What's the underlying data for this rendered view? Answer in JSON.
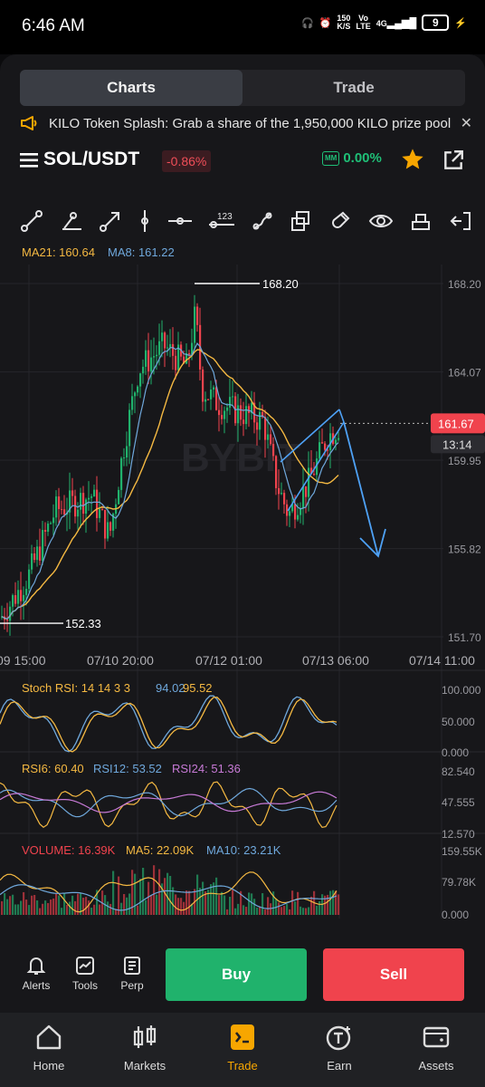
{
  "status": {
    "time": "6:46 AM",
    "speed_top": "150",
    "speed_bottom": "K/S",
    "net_top": "Vo",
    "net_bottom": "LTE",
    "signal": "4G",
    "battery": "9"
  },
  "tabs": [
    {
      "label": "Charts",
      "active": true
    },
    {
      "label": "Trade",
      "active": false
    }
  ],
  "banner": {
    "text": "KILO Token Splash: Grab a share of the 1,950,000 KILO prize pool"
  },
  "pair": {
    "symbol": "SOL/USDT",
    "change": "-0.86%",
    "mm_badge": "MM",
    "mm_value": "0.00%"
  },
  "toolbar": {
    "icons": [
      "trendline-icon",
      "ray-icon",
      "arrow-line-icon",
      "vertical-line-icon",
      "horizontal-line-icon",
      "price-range-icon",
      "brush-icon",
      "layers-icon",
      "magnet-icon",
      "eye-icon",
      "eraser-icon",
      "exit-icon"
    ],
    "price_range_label": "123"
  },
  "main_chart": {
    "ma21_label": "MA21: 160.64",
    "ma8_label": "MA8: 161.22",
    "y_ticks": [
      "168.20",
      "164.07",
      "159.95",
      "155.82",
      "151.70"
    ],
    "x_ticks": [
      "09 15:00",
      "07/10 20:00",
      "07/12 01:00",
      "07/13 06:00",
      "07/14 11:00"
    ],
    "high_label": "168.20",
    "low_label": "152.33",
    "current_price": "161.67",
    "countdown": "13:14",
    "watermark": "BYBIT",
    "ylim": [
      151.7,
      168.2
    ]
  },
  "stoch": {
    "title": "Stoch RSI: 14 14 3 3",
    "k": "94.02",
    "d": "95.52",
    "ticks": [
      "100.000",
      "50.000",
      "0.000"
    ]
  },
  "rsi": {
    "r6": "RSI6: 60.40",
    "r12": "RSI12: 53.52",
    "r24": "RSI24: 51.36",
    "ticks": [
      "82.540",
      "47.555",
      "12.570"
    ]
  },
  "volume": {
    "vol": "VOLUME: 16.39K",
    "ma5": "MA5: 22.09K",
    "ma10": "MA10: 23.21K",
    "ticks": [
      "159.55K",
      "79.78K",
      "0.000"
    ]
  },
  "actions": {
    "alerts": "Alerts",
    "tools": "Tools",
    "perp": "Perp",
    "buy": "Buy",
    "sell": "Sell"
  },
  "nav": [
    {
      "label": "Home",
      "icon": "home-icon"
    },
    {
      "label": "Markets",
      "icon": "markets-icon"
    },
    {
      "label": "Trade",
      "icon": "trade-icon",
      "active": true
    },
    {
      "label": "Earn",
      "icon": "earn-icon"
    },
    {
      "label": "Assets",
      "icon": "assets-icon"
    }
  ],
  "colors": {
    "up": "#20b26c",
    "down": "#f0434d",
    "ma21": "#f5b942",
    "ma8": "#6fa8dc",
    "accent": "#f7a600"
  }
}
